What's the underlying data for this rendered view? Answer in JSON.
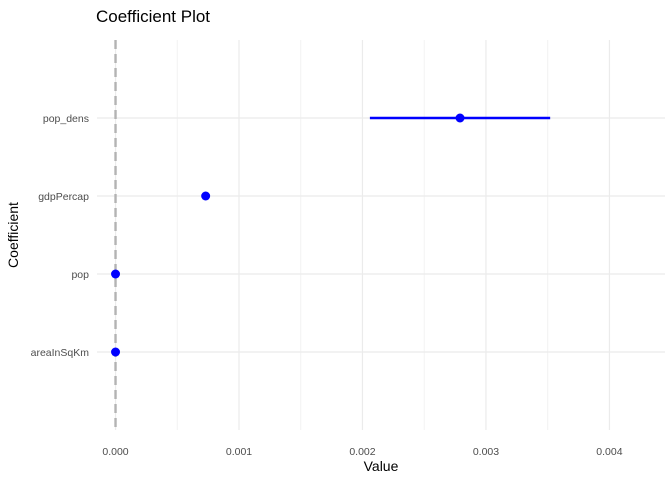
{
  "chart_data": {
    "type": "scatter",
    "title": "Coefficient Plot",
    "xlabel": "Value",
    "ylabel": "Coefficient",
    "xlim": [
      -0.00015,
      0.00445
    ],
    "x_ticks": [
      0.0,
      0.001,
      0.002,
      0.003,
      0.004
    ],
    "x_tick_labels": [
      "0.000",
      "0.001",
      "0.002",
      "0.003",
      "0.004"
    ],
    "categories": [
      "areaInSqKm",
      "pop",
      "gdpPercap",
      "pop_dens"
    ],
    "points": [
      {
        "term": "pop_dens",
        "estimate": 0.00279,
        "conf_low": 0.00206,
        "conf_high": 0.00352
      },
      {
        "term": "gdpPercap",
        "estimate": 0.00073,
        "conf_low": 0.00073,
        "conf_high": 0.00073
      },
      {
        "term": "pop",
        "estimate": 0.0,
        "conf_low": 0.0,
        "conf_high": 0.0
      },
      {
        "term": "areaInSqKm",
        "estimate": 0.0,
        "conf_low": 0.0,
        "conf_high": 0.0
      }
    ],
    "reference_line": {
      "x": 0,
      "style": "dashed",
      "color": "#b3b3b3"
    },
    "point_color": "#0000ff",
    "grid": true,
    "legend": "none"
  }
}
